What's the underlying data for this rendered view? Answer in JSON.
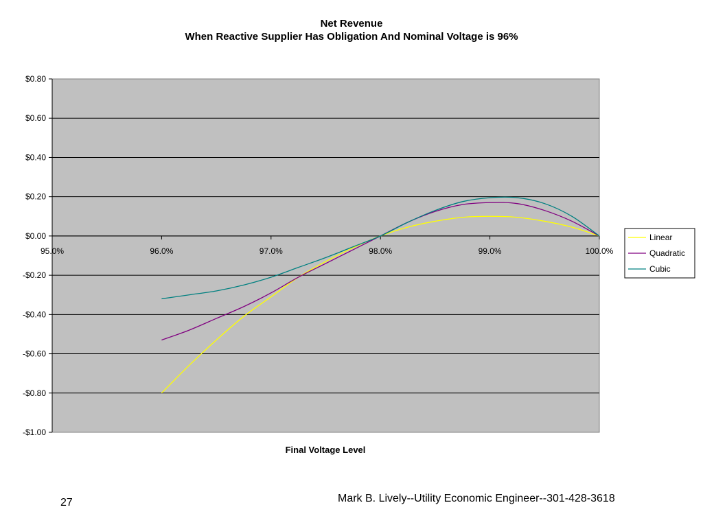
{
  "chart_data": {
    "type": "line",
    "title": "Net Revenue",
    "subtitle": "When Reactive Supplier Has Obligation And Nominal Voltage is 96%",
    "xlabel": "Final Voltage Level",
    "ylabel": "",
    "xlim": [
      0.95,
      1.0
    ],
    "ylim": [
      -1.0,
      0.8
    ],
    "x_ticks": [
      {
        "value": 0.95,
        "label": "95.0%"
      },
      {
        "value": 0.96,
        "label": "96.0%"
      },
      {
        "value": 0.97,
        "label": "97.0%"
      },
      {
        "value": 0.98,
        "label": "98.0%"
      },
      {
        "value": 0.99,
        "label": "99.0%"
      },
      {
        "value": 1.0,
        "label": "100.0%"
      }
    ],
    "y_ticks": [
      {
        "value": 0.8,
        "label": "$0.80"
      },
      {
        "value": 0.6,
        "label": "$0.60"
      },
      {
        "value": 0.4,
        "label": "$0.40"
      },
      {
        "value": 0.2,
        "label": "$0.20"
      },
      {
        "value": 0.0,
        "label": "$0.00"
      },
      {
        "value": -0.2,
        "label": "-$0.20"
      },
      {
        "value": -0.4,
        "label": "-$0.40"
      },
      {
        "value": -0.6,
        "label": "-$0.60"
      },
      {
        "value": -0.8,
        "label": "-$0.80"
      },
      {
        "value": -1.0,
        "label": "-$1.00"
      }
    ],
    "grid": true,
    "legend_position": "right",
    "plot_background": "#c0c0c0",
    "series": [
      {
        "name": "Linear",
        "color": "#ffff00",
        "x": [
          0.96,
          0.9625,
          0.965,
          0.9675,
          0.97,
          0.9725,
          0.975,
          0.9775,
          0.98,
          0.9825,
          0.985,
          0.9875,
          0.99,
          0.9925,
          0.995,
          0.9975,
          1.0
        ],
        "y": [
          -0.8,
          -0.66,
          -0.53,
          -0.41,
          -0.31,
          -0.21,
          -0.13,
          -0.06,
          0.0,
          0.045,
          0.075,
          0.095,
          0.1,
          0.095,
          0.075,
          0.045,
          0.0
        ]
      },
      {
        "name": "Quadratic",
        "color": "#800080",
        "x": [
          0.96,
          0.9625,
          0.965,
          0.9675,
          0.97,
          0.9725,
          0.975,
          0.9775,
          0.98,
          0.9825,
          0.985,
          0.9875,
          0.99,
          0.9925,
          0.995,
          0.9975,
          1.0
        ],
        "y": [
          -0.53,
          -0.48,
          -0.42,
          -0.36,
          -0.29,
          -0.21,
          -0.14,
          -0.07,
          0.0,
          0.07,
          0.125,
          0.16,
          0.17,
          0.165,
          0.13,
          0.075,
          0.0
        ]
      },
      {
        "name": "Cubic",
        "color": "#008080",
        "x": [
          0.96,
          0.9625,
          0.965,
          0.9675,
          0.97,
          0.9725,
          0.975,
          0.9775,
          0.98,
          0.9825,
          0.985,
          0.9875,
          0.99,
          0.9925,
          0.995,
          0.9975,
          1.0
        ],
        "y": [
          -0.32,
          -0.3,
          -0.28,
          -0.25,
          -0.21,
          -0.16,
          -0.11,
          -0.055,
          0.0,
          0.07,
          0.13,
          0.175,
          0.195,
          0.195,
          0.165,
          0.1,
          0.0
        ]
      }
    ]
  },
  "footer": {
    "page_number": "27",
    "credit": "Mark B. Lively--Utility Economic Engineer--301-428-3618"
  }
}
